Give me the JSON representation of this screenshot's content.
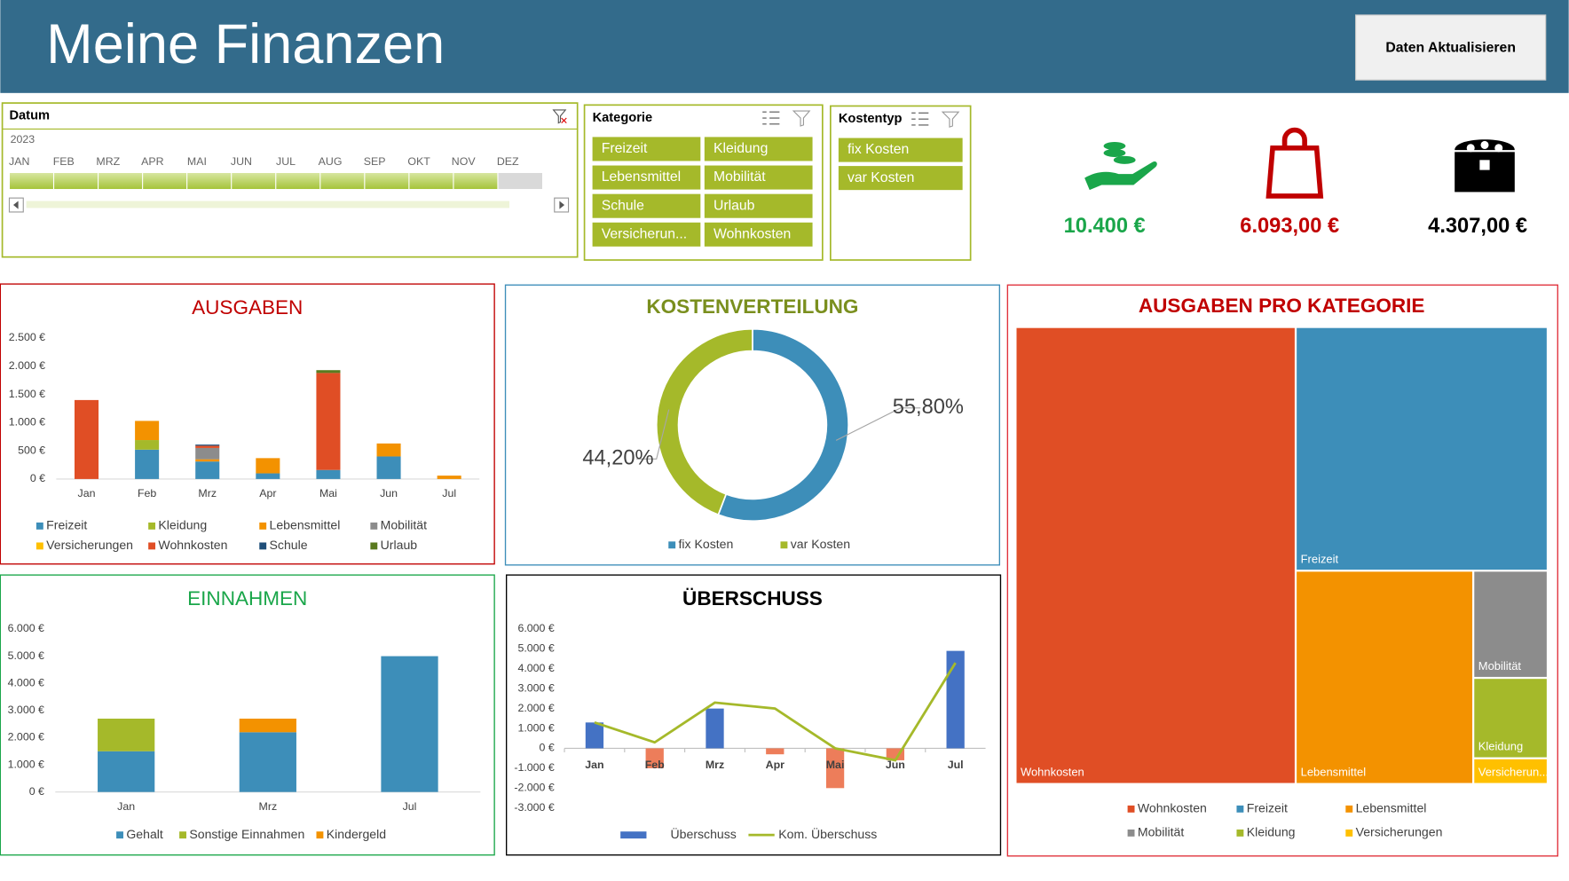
{
  "header": {
    "title": "Meine Finanzen",
    "button": "Daten Aktualisieren"
  },
  "slicers": {
    "datum": {
      "title": "Datum",
      "year": "2023",
      "months": [
        "JAN",
        "FEB",
        "MRZ",
        "APR",
        "MAI",
        "JUN",
        "JUL",
        "AUG",
        "SEP",
        "OKT",
        "NOV",
        "DEZ"
      ]
    },
    "kategorie": {
      "title": "Kategorie",
      "items": [
        "Freizeit",
        "Kleidung",
        "Lebensmittel",
        "Mobilität",
        "Schule",
        "Urlaub",
        "Versicherun...",
        "Wohnkosten"
      ]
    },
    "kostentyp": {
      "title": "Kostentyp",
      "items": [
        "fix Kosten",
        "var Kosten"
      ]
    }
  },
  "kpis": [
    {
      "text": "10.400 €",
      "color": "#1aa64a"
    },
    {
      "text": "6.093,00 €",
      "color": "#c00000"
    },
    {
      "text": "4.307,00 €",
      "color": "#000000"
    }
  ],
  "chart_data": [
    {
      "type": "stacked_bar",
      "title": "AUSGABEN",
      "categories": [
        "Jan",
        "Feb",
        "Mrz",
        "Apr",
        "Mai",
        "Jun",
        "Jul"
      ],
      "series": [
        {
          "name": "Freizeit",
          "color": "#3d8eb9",
          "values": [
            0,
            520,
            310,
            100,
            160,
            400,
            0
          ]
        },
        {
          "name": "Kleidung",
          "color": "#a5b92a",
          "values": [
            0,
            170,
            0,
            0,
            0,
            0,
            0
          ]
        },
        {
          "name": "Lebensmittel",
          "color": "#f39200",
          "values": [
            0,
            340,
            40,
            270,
            0,
            230,
            60
          ]
        },
        {
          "name": "Mobilität",
          "color": "#8c8c8c",
          "values": [
            0,
            0,
            200,
            0,
            0,
            0,
            0
          ]
        },
        {
          "name": "Versicherungen",
          "color": "#ffc000",
          "values": [
            0,
            0,
            0,
            0,
            0,
            0,
            0
          ]
        },
        {
          "name": "Wohnkosten",
          "color": "#e04e25",
          "values": [
            1400,
            0,
            40,
            0,
            1720,
            0,
            0
          ]
        },
        {
          "name": "Schule",
          "color": "#1f4e79",
          "values": [
            0,
            0,
            20,
            0,
            0,
            0,
            0
          ]
        },
        {
          "name": "Urlaub",
          "color": "#5a7a1f",
          "values": [
            0,
            0,
            0,
            0,
            50,
            0,
            0
          ]
        }
      ],
      "ylim": [
        0,
        2500
      ],
      "yticks": [
        {
          "value": 0,
          "label": "0 €"
        },
        {
          "value": 500,
          "label": "500 €"
        },
        {
          "value": 1000,
          "label": "1.000 €"
        },
        {
          "value": 1500,
          "label": "1.500 €"
        },
        {
          "value": 2000,
          "label": "2.000 €"
        },
        {
          "value": 2500,
          "label": "2.500 €"
        }
      ],
      "grid": false
    },
    {
      "type": "donut",
      "title": "KOSTENVERTEILUNG",
      "categories": [
        "fix Kosten",
        "var Kosten"
      ],
      "values": [
        55.8,
        44.2
      ],
      "value_labels": [
        "55,80%",
        "44,20%"
      ],
      "colors": [
        "#3d8eb9",
        "#a5b92a"
      ]
    },
    {
      "type": "stacked_bar",
      "title": "EINNAHMEN",
      "categories": [
        "Jan",
        "Mrz",
        "Jul"
      ],
      "series": [
        {
          "name": "Gehalt",
          "color": "#3d8eb9",
          "values": [
            1500,
            2200,
            5000
          ]
        },
        {
          "name": "Sonstige Einnahmen",
          "color": "#a5b92a",
          "values": [
            1200,
            0,
            0
          ]
        },
        {
          "name": "Kindergeld",
          "color": "#f39200",
          "values": [
            0,
            500,
            0
          ]
        }
      ],
      "ylim": [
        0,
        6000
      ],
      "yticks": [
        {
          "value": 0,
          "label": "0 €"
        },
        {
          "value": 1000,
          "label": "1.000 €"
        },
        {
          "value": 2000,
          "label": "2.000 €"
        },
        {
          "value": 3000,
          "label": "3.000 €"
        },
        {
          "value": 4000,
          "label": "4.000 €"
        },
        {
          "value": 5000,
          "label": "5.000 €"
        },
        {
          "value": 6000,
          "label": "6.000 €"
        }
      ],
      "grid": false
    },
    {
      "type": "combo",
      "title": "ÜBERSCHUSS",
      "categories": [
        "Jan",
        "Feb",
        "Mrz",
        "Apr",
        "Mai",
        "Jun",
        "Jul"
      ],
      "series": [
        {
          "name": "Überschuss",
          "kind": "bar",
          "color": "#4472c4",
          "negative_color": "#ed7d5a",
          "values": [
            1300,
            -1000,
            2000,
            -300,
            -2000,
            -600,
            4900
          ]
        },
        {
          "name": "Kom. Überschuss",
          "kind": "line",
          "color": "#a5b92a",
          "values": [
            1300,
            300,
            2300,
            2000,
            0,
            -600,
            4300
          ]
        }
      ],
      "ylim": [
        -3000,
        6000
      ],
      "yticks": [
        {
          "value": -3000,
          "label": "-3.000 €"
        },
        {
          "value": -2000,
          "label": "-2.000 €"
        },
        {
          "value": -1000,
          "label": "-1.000 €"
        },
        {
          "value": 0,
          "label": "0 €"
        },
        {
          "value": 1000,
          "label": "1.000 €"
        },
        {
          "value": 2000,
          "label": "2.000 €"
        },
        {
          "value": 3000,
          "label": "3.000 €"
        },
        {
          "value": 4000,
          "label": "4.000 €"
        },
        {
          "value": 5000,
          "label": "5.000 €"
        },
        {
          "value": 6000,
          "label": "6.000 €"
        }
      ],
      "grid": false
    },
    {
      "type": "treemap",
      "title": "AUSGABEN PRO KATEGORIE",
      "categories": [
        "Wohnkosten",
        "Freizeit",
        "Lebensmittel",
        "Mobilität",
        "Kleidung",
        "Versicherun..."
      ],
      "legend": [
        "Wohnkosten",
        "Freizeit",
        "Lebensmittel",
        "Mobilität",
        "Kleidung",
        "Versicherungen"
      ],
      "values": [
        3210,
        1540,
        950,
        200,
        150,
        48
      ],
      "colors": [
        "#e04e25",
        "#3d8eb9",
        "#f39200",
        "#8c8c8c",
        "#a5b92a",
        "#ffc000"
      ]
    }
  ]
}
